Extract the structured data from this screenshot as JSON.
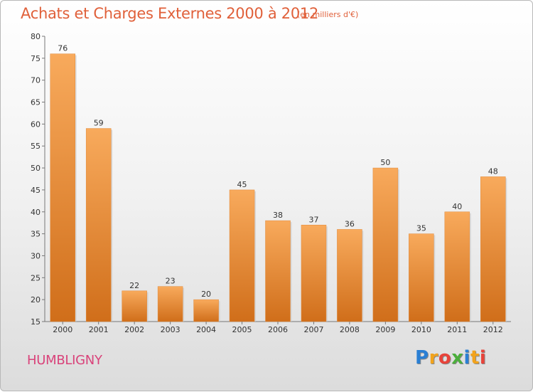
{
  "header": {
    "title": "Achats et Charges Externes 2000 à 2012",
    "subtitle": "(en milliers d'€)"
  },
  "footer": {
    "commune": "HUMBLIGNY",
    "logo_text": "Proxiti"
  },
  "colors": {
    "bar_light": "#f8aa5c",
    "bar_dark": "#d06e1a",
    "title": "#e0603a",
    "commune": "#d9437a"
  },
  "chart_data": {
    "type": "bar",
    "categories": [
      "2000",
      "2001",
      "2002",
      "2003",
      "2004",
      "2005",
      "2006",
      "2007",
      "2008",
      "2009",
      "2010",
      "2011",
      "2012"
    ],
    "values": [
      76,
      59,
      22,
      23,
      20,
      45,
      38,
      37,
      36,
      50,
      35,
      40,
      48
    ],
    "ylim": [
      15,
      80
    ],
    "yticks": [
      15,
      20,
      25,
      30,
      35,
      40,
      45,
      50,
      55,
      60,
      65,
      70,
      75,
      80
    ],
    "grid": false,
    "legend": "none"
  }
}
